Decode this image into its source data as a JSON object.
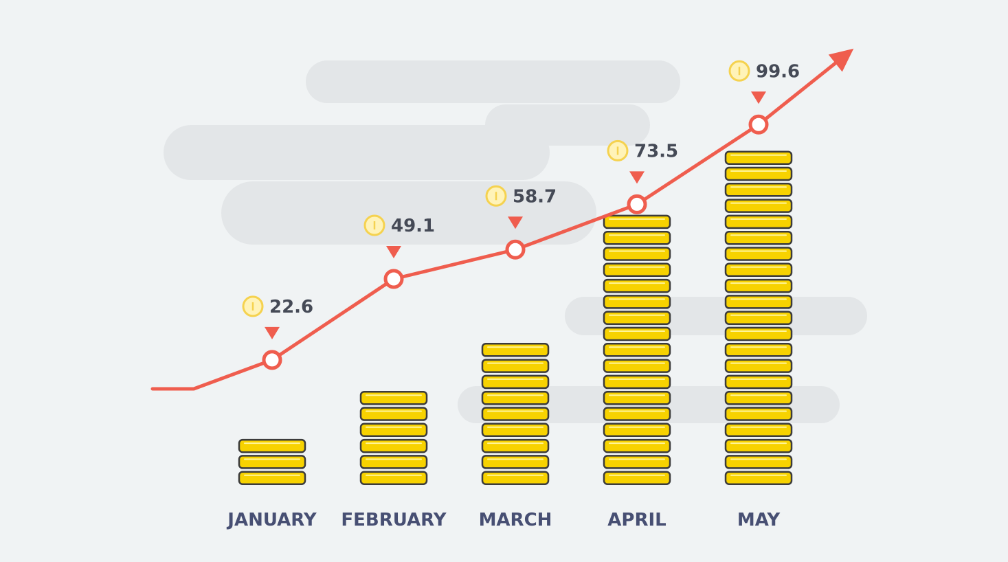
{
  "chart_data": {
    "type": "bar",
    "categories": [
      "JANUARY",
      "FEBRUARY",
      "MARCH",
      "APRIL",
      "MAY"
    ],
    "series": [
      {
        "values": [
          22.6,
          49.1,
          58.7,
          73.5,
          99.6
        ]
      }
    ],
    "coin_stack_counts": [
      3,
      6,
      9,
      17,
      21
    ],
    "title": "",
    "xlabel": "",
    "ylabel": "",
    "colors": {
      "background": "#f0f3f4",
      "cloud": "#e3e6e8",
      "line": "#ef5d4e",
      "coin": "#f7d200",
      "coin_outline": "#3b3b3b",
      "label": "#474f73",
      "value_text": "#454a56",
      "coin_icon": "#f5d24f"
    },
    "icons": {
      "value_marker": "coin-icon",
      "pointer": "triangle-down-icon",
      "trend_end": "arrow-head-icon"
    }
  }
}
